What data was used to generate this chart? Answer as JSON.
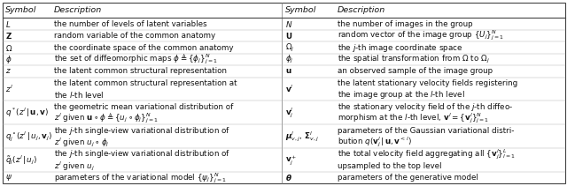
{
  "figsize": [
    6.4,
    2.11
  ],
  "dpi": 100,
  "bg_color": "#ffffff",
  "header": [
    "Symbol",
    "Description",
    "Symbol",
    "Description"
  ],
  "rows_left": [
    [
      "$L$",
      "the number of levels of latent variables"
    ],
    [
      "$\\mathbf{Z}$",
      "random variable of the common anatomy"
    ],
    [
      "$\\Omega$",
      "the coordinate space of the common anatomy"
    ],
    [
      "$\\phi$",
      "the set of diffeomorphic maps $\\phi \\triangleq \\{\\phi_j\\}_{j=1}^N$"
    ],
    [
      "$z$",
      "the latent common structural representation"
    ],
    [
      "$z^l$",
      "the latent common structural representation at\nthe $l$-th level"
    ],
    [
      "$q^*(z^l\\,|\\,\\mathbf{u},\\mathbf{v})$",
      "the geometric mean variational distribution of\n$z^l$ given $\\mathbf{u}\\circ\\phi \\triangleq \\{u_j\\circ\\phi_j\\}_{j=1}^N$"
    ],
    [
      "$q_j^\\circ(z^l\\,|\\,u_j,\\mathbf{v}_j)$",
      "the $j$-th single-view variational distribution of\n$z^l$ given $u_j\\circ\\phi_j$"
    ],
    [
      "$\\tilde{q}_j(z^l\\,|\\,u_j)$",
      "the $j$-th single-view variational distribution of\n$z^l$ given $u_j$"
    ],
    [
      "$\\psi$",
      "parameters of the variational model $\\{\\psi_j\\}_{j=1}^N$"
    ]
  ],
  "rows_right": [
    [
      "$N$",
      "the number of images in the group"
    ],
    [
      "$\\mathbf{U}$",
      "random vector of the image group $\\{U_j\\}_{j=1}^N$"
    ],
    [
      "$\\Omega_j$",
      "the $j$-th image coordinate space"
    ],
    [
      "$\\phi_j$",
      "the spatial transformation from $\\Omega$ to $\\Omega_j$"
    ],
    [
      "$\\mathbf{u}$",
      "an observed sample of the image group"
    ],
    [
      "$\\mathbf{v}^l$",
      "the latent stationary velocity fields registering\nthe image group at the $l$-th level"
    ],
    [
      "$\\mathbf{v}_j^l$",
      "the stationary velocity field of the $j$-th diffeo-\nmorphism at the $l$-th level, $\\mathbf{v}^l=\\{\\mathbf{v}_j^l\\}_{j=1}^N$"
    ],
    [
      "$\\boldsymbol{\\mu}_{v,j}^l,\\,\\boldsymbol{\\Sigma}_{v,j}^l$",
      "parameters of the Gaussian variational distri-\nbution $q(\\mathbf{v}_j^l\\,|\\,\\mathbf{u},\\mathbf{v}^{<l})$"
    ],
    [
      "$\\mathbf{v}_j^+$",
      "the total velocity field aggregating all $\\{\\mathbf{v}_j^l\\}_{l=1}^L$\nupsampled to the top level"
    ],
    [
      "$\\boldsymbol{\\theta}$",
      "parameters of the generative model"
    ]
  ],
  "row_line_counts": [
    1,
    1,
    1,
    1,
    1,
    2,
    2,
    2,
    2,
    1
  ]
}
